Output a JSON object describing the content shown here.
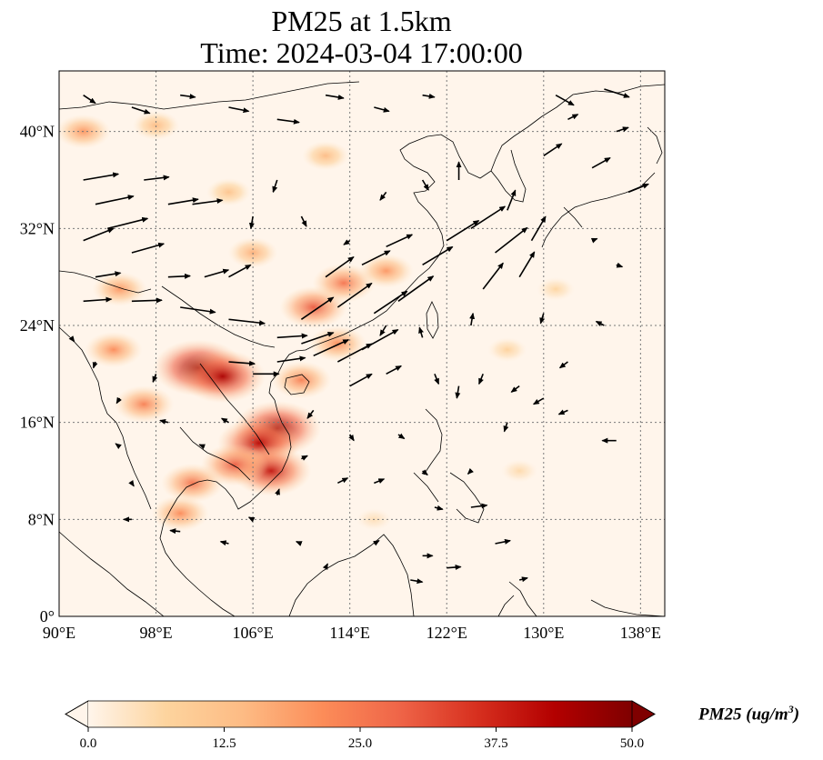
{
  "title": {
    "line1": "PM25 at 1.5km",
    "line2": "Time: 2024-03-04 17:00:00"
  },
  "map": {
    "extent": {
      "lon_min": 90,
      "lon_max": 140,
      "lat_min": 0,
      "lat_max": 45
    },
    "x_ticks": [
      {
        "value": 90,
        "label": "90°E"
      },
      {
        "value": 98,
        "label": "98°E"
      },
      {
        "value": 106,
        "label": "106°E"
      },
      {
        "value": 114,
        "label": "114°E"
      },
      {
        "value": 122,
        "label": "122°E"
      },
      {
        "value": 130,
        "label": "130°E"
      },
      {
        "value": 138,
        "label": "138°E"
      }
    ],
    "y_ticks": [
      {
        "value": 0,
        "label": "0°"
      },
      {
        "value": 8,
        "label": "8°N"
      },
      {
        "value": 16,
        "label": "16°N"
      },
      {
        "value": 24,
        "label": "24°N"
      },
      {
        "value": 32,
        "label": "32°N"
      },
      {
        "value": 40,
        "label": "40°N"
      }
    ],
    "gridlines": "dotted",
    "background_color": "#fff5eb",
    "coastline_color": "#000000",
    "wind_vectors": "black arrows"
  },
  "colorbar": {
    "colormap": "OrRd",
    "colors": [
      "#fff5eb",
      "#fdd49e",
      "#fdbb84",
      "#fc8d59",
      "#ef6548",
      "#d7301f",
      "#b30000",
      "#7f0000"
    ],
    "min": 0.0,
    "max": 50.0,
    "ticks": [
      "0.0",
      "12.5",
      "25.0",
      "37.5",
      "50.0"
    ],
    "label_main": "PM25 (ug/m",
    "label_sup": "3",
    "label_close": ")",
    "extend": "both"
  },
  "chart_data": {
    "type": "heatmap",
    "variable": "PM25",
    "units": "ug/m3",
    "hotspots": [
      {
        "lon": 101.5,
        "lat": 20.5,
        "value": 48
      },
      {
        "lon": 103.5,
        "lat": 19.8,
        "value": 44
      },
      {
        "lon": 108,
        "lat": 15.5,
        "value": 46
      },
      {
        "lon": 106.5,
        "lat": 14.3,
        "value": 42
      },
      {
        "lon": 107.5,
        "lat": 12,
        "value": 40
      },
      {
        "lon": 104.5,
        "lat": 12.5,
        "value": 30
      },
      {
        "lon": 101,
        "lat": 11,
        "value": 26
      },
      {
        "lon": 100,
        "lat": 8.5,
        "value": 22
      },
      {
        "lon": 97,
        "lat": 17.5,
        "value": 24
      },
      {
        "lon": 94.5,
        "lat": 22,
        "value": 22
      },
      {
        "lon": 95,
        "lat": 27,
        "value": 20
      },
      {
        "lon": 111,
        "lat": 25.5,
        "value": 30
      },
      {
        "lon": 113.5,
        "lat": 27.5,
        "value": 26
      },
      {
        "lon": 117,
        "lat": 28.5,
        "value": 20
      },
      {
        "lon": 110,
        "lat": 19.5,
        "value": 24
      },
      {
        "lon": 113,
        "lat": 22.5,
        "value": 22
      },
      {
        "lon": 106,
        "lat": 30,
        "value": 16
      },
      {
        "lon": 104,
        "lat": 35,
        "value": 12
      },
      {
        "lon": 112,
        "lat": 38,
        "value": 14
      },
      {
        "lon": 92,
        "lat": 40,
        "value": 20
      },
      {
        "lon": 98,
        "lat": 40.5,
        "value": 14
      },
      {
        "lon": 127,
        "lat": 22,
        "value": 8
      },
      {
        "lon": 131,
        "lat": 27,
        "value": 7
      },
      {
        "lon": 128,
        "lat": 12,
        "value": 6
      },
      {
        "lon": 116,
        "lat": 8,
        "value": 5
      }
    ],
    "wind": [
      [
        92,
        36,
        3.5,
        0.6
      ],
      [
        93,
        34,
        3.8,
        0.8
      ],
      [
        94,
        32,
        4,
        1
      ],
      [
        92,
        31,
        3,
        1.2
      ],
      [
        97,
        36,
        2.5,
        0.3
      ],
      [
        99,
        34,
        3,
        0.5
      ],
      [
        96,
        30,
        3.2,
        0.9
      ],
      [
        93,
        28,
        2.5,
        0.4
      ],
      [
        92,
        26,
        2.8,
        0.2
      ],
      [
        96,
        26,
        3,
        0.1
      ],
      [
        99,
        28,
        2.2,
        0.1
      ],
      [
        101,
        34,
        3,
        0.4
      ],
      [
        102,
        28,
        2.4,
        0.7
      ],
      [
        104,
        28,
        2.2,
        1.2
      ],
      [
        100,
        25.5,
        3.5,
        -0.5
      ],
      [
        104,
        24.5,
        3.6,
        -0.4
      ],
      [
        108,
        23,
        3,
        0.2
      ],
      [
        110,
        22.5,
        3.2,
        1.1
      ],
      [
        111,
        21.5,
        3.5,
        1.6
      ],
      [
        113,
        21,
        3.4,
        1.8
      ],
      [
        115,
        22,
        3.6,
        2
      ],
      [
        110,
        24.5,
        3.2,
        2.2
      ],
      [
        113,
        25.5,
        3.4,
        2.4
      ],
      [
        116,
        25,
        3.3,
        2.2
      ],
      [
        118,
        26,
        3.5,
        2.5
      ],
      [
        112,
        28,
        2.8,
        2
      ],
      [
        115,
        29,
        2.8,
        1.4
      ],
      [
        117,
        30.5,
        2.6,
        1.2
      ],
      [
        120,
        29,
        3,
        1.8
      ],
      [
        122,
        31,
        3.2,
        2
      ],
      [
        124,
        32,
        3.4,
        2.2
      ],
      [
        126,
        30,
        3.2,
        2.5
      ],
      [
        125,
        27,
        2,
        2.6
      ],
      [
        128,
        28,
        1.5,
        2.5
      ],
      [
        129,
        31,
        1.4,
        2.4
      ],
      [
        127,
        33.5,
        0.8,
        2
      ],
      [
        104,
        21,
        2.6,
        -0.2
      ],
      [
        106,
        20,
        2.6,
        0
      ],
      [
        108,
        21,
        2.8,
        0.4
      ],
      [
        114,
        19,
        2.2,
        1.2
      ],
      [
        117,
        20,
        1.5,
        0.8
      ],
      [
        121,
        20,
        0.4,
        -1
      ],
      [
        123,
        19,
        -0.2,
        -1.2
      ],
      [
        125,
        20,
        -0.4,
        -1
      ],
      [
        128,
        19,
        -0.8,
        -0.6
      ],
      [
        130,
        18,
        -1,
        -0.6
      ],
      [
        132,
        17,
        -0.9,
        -0.4
      ],
      [
        136,
        14.5,
        -1.4,
        0
      ],
      [
        120,
        23,
        -0.3,
        1
      ],
      [
        124,
        24,
        0.2,
        1.2
      ],
      [
        117,
        24,
        -0.6,
        -1
      ],
      [
        111,
        17,
        -0.6,
        -0.8
      ],
      [
        114,
        15,
        0.4,
        -0.6
      ],
      [
        118,
        15,
        0.6,
        -0.4
      ],
      [
        120,
        12,
        0.5,
        -0.4
      ],
      [
        124,
        12,
        -0.3,
        -0.3
      ],
      [
        98,
        20,
        -0.3,
        -0.8
      ],
      [
        95,
        18,
        -0.3,
        -0.5
      ],
      [
        96,
        11,
        0.2,
        -0.3
      ],
      [
        102,
        14,
        -0.5,
        0.2
      ],
      [
        104,
        16,
        -0.7,
        0.4
      ],
      [
        106,
        8,
        -0.4,
        0.2
      ],
      [
        108,
        10,
        0.2,
        0.6
      ],
      [
        96,
        8,
        -0.8,
        0
      ],
      [
        100,
        7,
        -1,
        0.1
      ],
      [
        104,
        6,
        -0.8,
        0.2
      ],
      [
        110,
        6,
        -0.5,
        0.2
      ],
      [
        112,
        4,
        0.2,
        0.4
      ],
      [
        116,
        6,
        0.5,
        0.3
      ],
      [
        120,
        5,
        1,
        0
      ],
      [
        119,
        3,
        1.2,
        -0.2
      ],
      [
        122,
        4,
        1.4,
        0.1
      ],
      [
        126,
        6,
        1.5,
        0.3
      ],
      [
        124,
        9,
        1.6,
        0.2
      ],
      [
        128,
        3,
        0.8,
        0.2
      ],
      [
        93,
        21,
        -0.2,
        -0.6
      ],
      [
        91,
        23,
        0.3,
        -0.4
      ],
      [
        95,
        14,
        -0.4,
        0.3
      ],
      [
        99,
        16,
        -0.8,
        0.2
      ],
      [
        113,
        11,
        1,
        0.5
      ],
      [
        116,
        11,
        1,
        0.4
      ],
      [
        92,
        43,
        1.2,
        -0.8
      ],
      [
        96,
        42,
        1.8,
        -0.6
      ],
      [
        100,
        43,
        1.5,
        -0.2
      ],
      [
        104,
        42,
        2,
        -0.4
      ],
      [
        108,
        41,
        2.2,
        -0.3
      ],
      [
        112,
        43,
        1.8,
        -0.3
      ],
      [
        116,
        42,
        1.5,
        -0.4
      ],
      [
        120,
        43,
        1.2,
        -0.2
      ],
      [
        131,
        43,
        1.8,
        -1
      ],
      [
        135,
        43.5,
        2.5,
        -0.8
      ],
      [
        132,
        41,
        1,
        0.5
      ],
      [
        136,
        40,
        1.2,
        0.4
      ],
      [
        130,
        38,
        1.8,
        1.2
      ],
      [
        134,
        37,
        1.8,
        1
      ],
      [
        137,
        35,
        2,
        0.8
      ],
      [
        123,
        36,
        0,
        1.8
      ],
      [
        120,
        36,
        0.6,
        -1
      ],
      [
        117,
        35,
        -0.6,
        -0.8
      ],
      [
        110,
        33,
        0.5,
        -1
      ],
      [
        106,
        33,
        -0.2,
        -1.2
      ],
      [
        108,
        36,
        -0.4,
        -1.2
      ],
      [
        114,
        31,
        -0.6,
        -0.4
      ],
      [
        134,
        31,
        0.5,
        0.2
      ],
      [
        136,
        29,
        0.6,
        -0.2
      ],
      [
        135,
        24,
        -0.8,
        0.4
      ],
      [
        132,
        21,
        -0.8,
        -0.6
      ],
      [
        130,
        25,
        -0.3,
        -1
      ],
      [
        127,
        16,
        -0.3,
        -0.9
      ],
      [
        121,
        9,
        0.8,
        -0.2
      ],
      [
        110,
        13,
        0.6,
        0.3
      ]
    ]
  }
}
